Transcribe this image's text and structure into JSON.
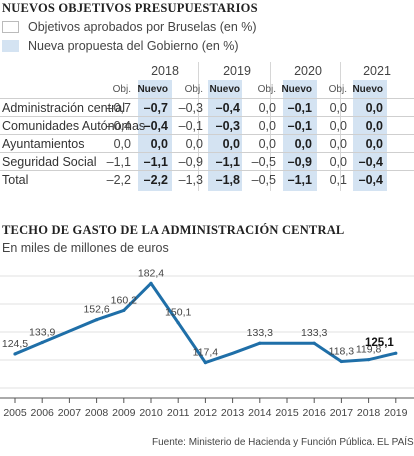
{
  "table_title": "NUEVOS OBJETIVOS PRESUPUESTARIOS",
  "legend": {
    "objective": "Objetivos aprobados por Bruselas (en %)",
    "proposal": "Nueva propuesta del Gobierno (en %)"
  },
  "colors": {
    "proposal_fill": "#d4e3f2",
    "line": "#1f6fa8"
  },
  "table": {
    "years": [
      "2018",
      "2019",
      "2020",
      "2021"
    ],
    "sub_obj": "Obj.",
    "sub_new": "Nuevo",
    "rows": [
      {
        "label": "Administración central",
        "values": [
          [
            "–0,7",
            "–0,7"
          ],
          [
            "–0,3",
            "–0,4"
          ],
          [
            "0,0",
            "–0,1"
          ],
          [
            "0,0",
            "0,0"
          ]
        ]
      },
      {
        "label": "Comunidades Autónomas",
        "values": [
          [
            "–0,4",
            "–0,4"
          ],
          [
            "–0,1",
            "–0,3"
          ],
          [
            "0,0",
            "–0,1"
          ],
          [
            "0,0",
            "0,0"
          ]
        ]
      },
      {
        "label": "Ayuntamientos",
        "values": [
          [
            "0,0",
            "0,0"
          ],
          [
            "0,0",
            "0,0"
          ],
          [
            "0,0",
            "0,0"
          ],
          [
            "0,0",
            "0,0"
          ]
        ]
      },
      {
        "label": "Seguridad Social",
        "values": [
          [
            "–1,1",
            "–1,1"
          ],
          [
            "–0,9",
            "–1,1"
          ],
          [
            "–0,5",
            "–0,9"
          ],
          [
            "0,0",
            "–0,4"
          ]
        ]
      },
      {
        "label": "Total",
        "values": [
          [
            "–2,2",
            "–2,2"
          ],
          [
            "–1,3",
            "–1,8"
          ],
          [
            "–0,5",
            "–1,1"
          ],
          [
            "0,1",
            "–0,4"
          ]
        ]
      }
    ]
  },
  "chart_title": "TECHO DE GASTO DE LA ADMINISTRACIÓN CENTRAL",
  "chart_subtitle": "En miles de millones de euros",
  "chart_data": {
    "type": "line",
    "title": "TECHO DE GASTO DE LA ADMINISTRACIÓN CENTRAL",
    "subtitle": "En miles de millones de euros",
    "x": [
      "2005",
      "2006",
      "2007",
      "2008",
      "2009",
      "2010",
      "2011",
      "2012",
      "2013",
      "2014",
      "2015",
      "2016",
      "2017",
      "2018",
      "2019"
    ],
    "values": [
      124.5,
      133.9,
      null,
      152.6,
      160.2,
      182.4,
      150.1,
      117.4,
      null,
      133.3,
      null,
      133.3,
      118.3,
      119.8,
      125.1
    ],
    "interpolated_values": [
      124.5,
      133.9,
      143.2,
      152.6,
      160.2,
      182.4,
      150.1,
      117.4,
      125.0,
      133.3,
      133.3,
      133.3,
      118.3,
      119.8,
      125.1
    ],
    "labels": [
      "124,5",
      "133,9",
      "",
      "152,6",
      "160,2",
      "182,4",
      "150,1",
      "117,4",
      "",
      "133,3",
      "",
      "133,3",
      "118,3",
      "119,8",
      "125,1"
    ],
    "ylim": [
      90,
      195
    ],
    "grid": "horizontal",
    "legend": "none"
  },
  "footer": {
    "source": "Fuente: Ministerio de Hacienda y Función Pública.",
    "brand": "EL PAÍS"
  }
}
